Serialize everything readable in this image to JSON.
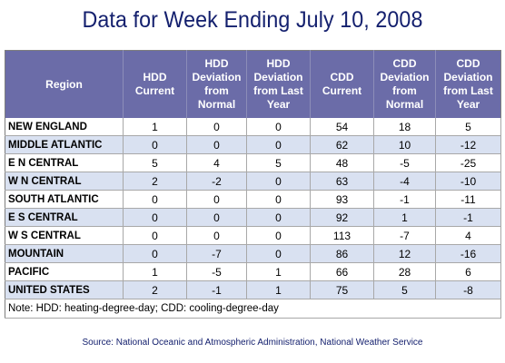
{
  "title": "Data for Week Ending July 10, 2008",
  "headers": [
    [
      "Region"
    ],
    [
      "HDD",
      "Current"
    ],
    [
      "HDD",
      "Deviation",
      "from",
      "Normal"
    ],
    [
      "HDD",
      "Deviation",
      "from Last",
      "Year"
    ],
    [
      "CDD",
      "Current"
    ],
    [
      "CDD",
      "Deviation",
      "from",
      "Normal"
    ],
    [
      "CDD",
      "Deviation",
      "from Last",
      "Year"
    ]
  ],
  "rows": [
    [
      "NEW ENGLAND",
      "1",
      "0",
      "0",
      "54",
      "18",
      "5"
    ],
    [
      "MIDDLE ATLANTIC",
      "0",
      "0",
      "0",
      "62",
      "10",
      "-12"
    ],
    [
      "E N CENTRAL",
      "5",
      "4",
      "5",
      "48",
      "-5",
      "-25"
    ],
    [
      "W N CENTRAL",
      "2",
      "-2",
      "0",
      "63",
      "-4",
      "-10"
    ],
    [
      "SOUTH ATLANTIC",
      "0",
      "0",
      "0",
      "93",
      "-1",
      "-11"
    ],
    [
      "E S CENTRAL",
      "0",
      "0",
      "0",
      "92",
      "1",
      "-1"
    ],
    [
      "W S CENTRAL",
      "0",
      "0",
      "0",
      "113",
      "-7",
      "4"
    ],
    [
      "MOUNTAIN",
      "0",
      "-7",
      "0",
      "86",
      "12",
      "-16"
    ],
    [
      "PACIFIC",
      "1",
      "-5",
      "1",
      "66",
      "28",
      "6"
    ],
    [
      "UNITED STATES",
      "2",
      "-1",
      "1",
      "75",
      "5",
      "-8"
    ]
  ],
  "note": "Note: HDD: heating-degree-day; CDD: cooling-degree-day",
  "source": "Source:  National Oceanic and Atmospheric Administration, National Weather Service"
}
